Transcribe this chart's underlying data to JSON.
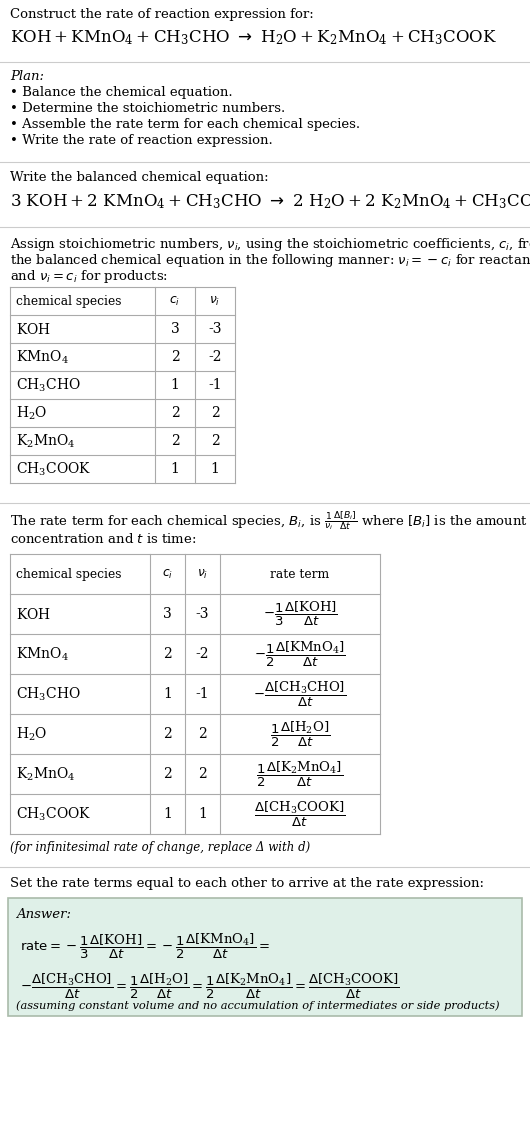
{
  "title_line1": "Construct the rate of reaction expression for:",
  "plan_header": "Plan:",
  "plan_items": [
    "Balance the chemical equation.",
    "Determine the stoichiometric numbers.",
    "Assemble the rate term for each chemical species.",
    "Write the rate of reaction expression."
  ],
  "balanced_header": "Write the balanced chemical equation:",
  "table1_data": [
    [
      "KOH",
      "3",
      "-3"
    ],
    [
      "KMnO_4",
      "2",
      "-2"
    ],
    [
      "CH_3CHO",
      "1",
      "-1"
    ],
    [
      "H_2O",
      "2",
      "2"
    ],
    [
      "K_2MnO_4",
      "2",
      "2"
    ],
    [
      "CH_3COOK",
      "1",
      "1"
    ]
  ],
  "table2_data": [
    [
      "KOH",
      "3",
      "-3"
    ],
    [
      "KMnO_4",
      "2",
      "-2"
    ],
    [
      "CH_3CHO",
      "1",
      "-1"
    ],
    [
      "H_2O",
      "2",
      "2"
    ],
    [
      "K_2MnO_4",
      "2",
      "2"
    ],
    [
      "CH_3COOK",
      "1",
      "1"
    ]
  ],
  "infinitesimal_note": "(for infinitesimal rate of change, replace Δ with d)",
  "set_equal_text": "Set the rate terms equal to each other to arrive at the rate expression:",
  "answer_label": "Answer:",
  "answer_box_color": "#dff0e8",
  "answer_note": "(assuming constant volume and no accumulation of intermediates or side products)",
  "bg_color": "#ffffff",
  "text_color": "#000000",
  "line_color": "#cccccc",
  "table_line_color": "#aaaaaa"
}
